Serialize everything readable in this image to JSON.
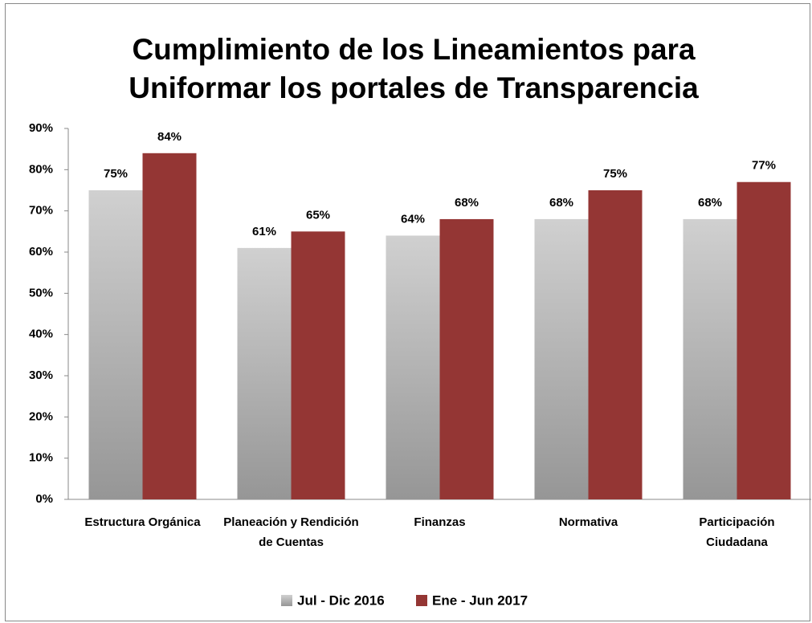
{
  "chart_data": {
    "type": "bar",
    "title": "Cumplimiento de los Lineamientos para Uniformar los portales de Transparencia",
    "categories": [
      "Estructura Orgánica",
      "Planeación y Rendición de Cuentas",
      "Finanzas",
      "Normativa",
      "Participación Ciudadana"
    ],
    "series": [
      {
        "name": "Jul - Dic 2016",
        "color": "#bfbfbf",
        "values": [
          75,
          61,
          64,
          68,
          68
        ],
        "value_labels": [
          "75%",
          "61%",
          "64%",
          "68%",
          "68%"
        ]
      },
      {
        "name": "Ene - Jun 2017",
        "color": "#943634",
        "values": [
          84,
          65,
          68,
          75,
          77
        ],
        "value_labels": [
          "84%",
          "65%",
          "68%",
          "75%",
          "77%"
        ]
      }
    ],
    "ylim": [
      0,
      90
    ],
    "yticks": [
      {
        "value": 0,
        "label": "0%"
      },
      {
        "value": 10,
        "label": "10%"
      },
      {
        "value": 20,
        "label": "20%"
      },
      {
        "value": 30,
        "label": "30%"
      },
      {
        "value": 40,
        "label": "40%"
      },
      {
        "value": 50,
        "label": "50%"
      },
      {
        "value": 60,
        "label": "60%"
      },
      {
        "value": 70,
        "label": "70%"
      },
      {
        "value": 80,
        "label": "80%"
      },
      {
        "value": 90,
        "label": "90%"
      }
    ],
    "legend": "bottom"
  }
}
